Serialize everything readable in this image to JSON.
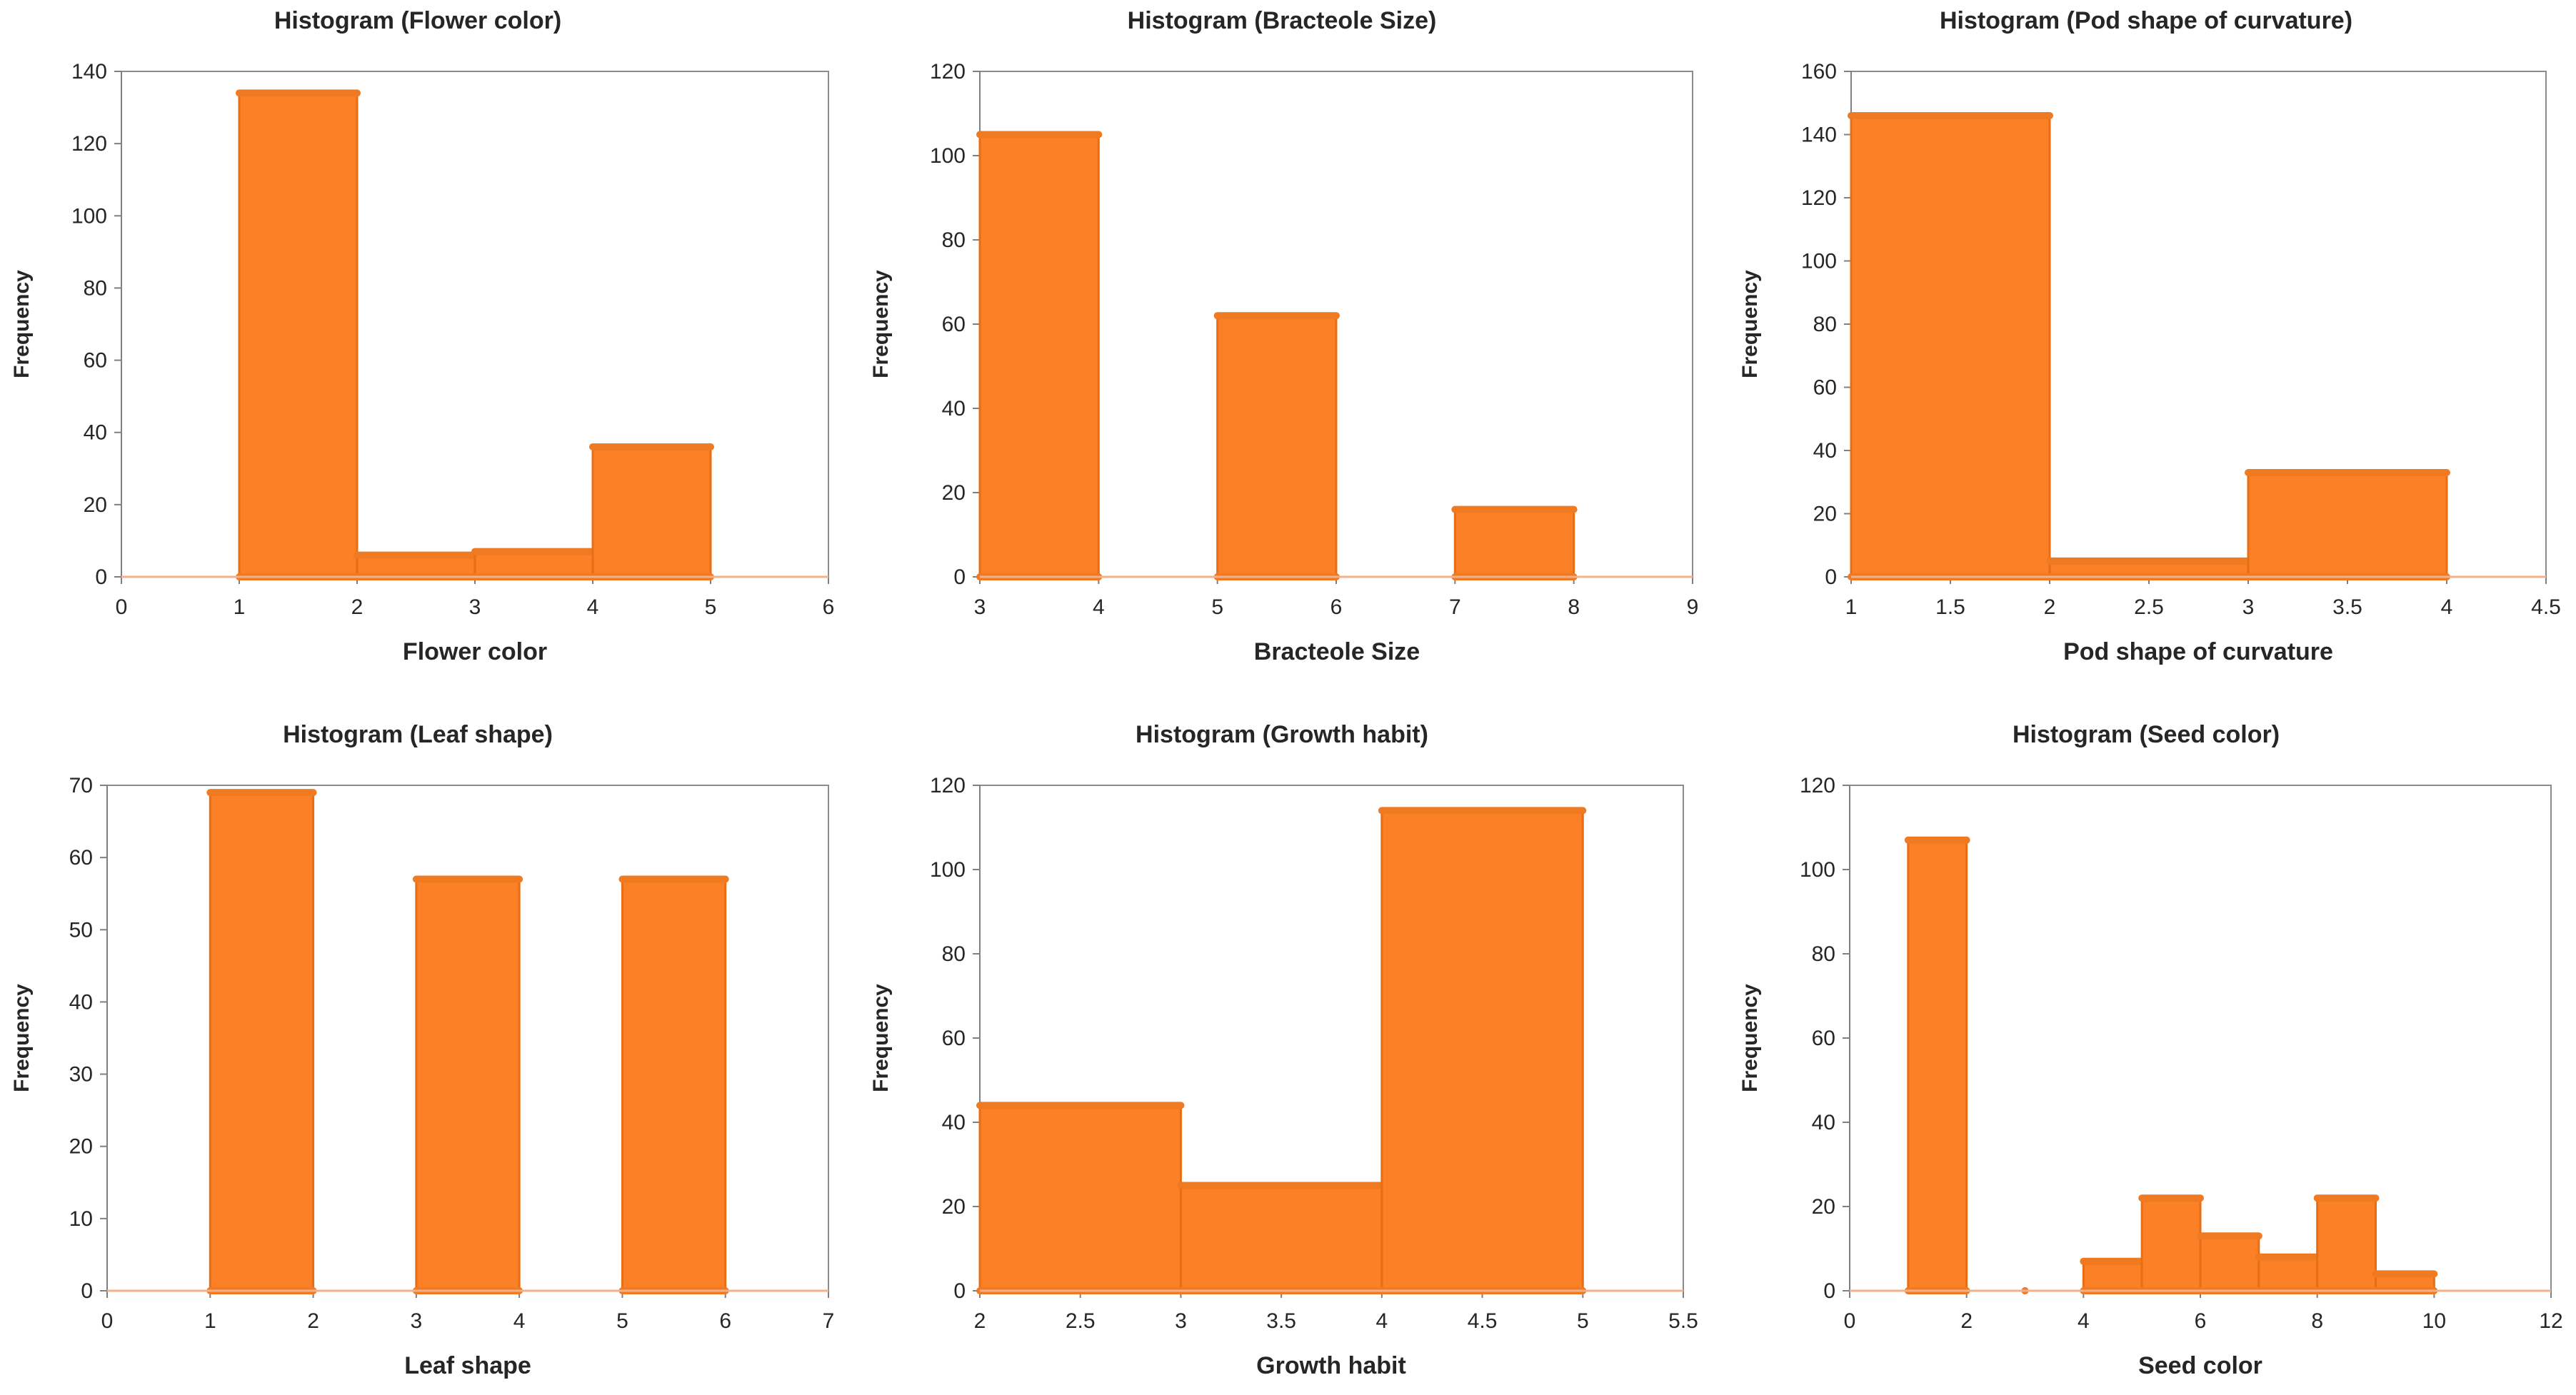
{
  "colors": {
    "bar": "#fb8026",
    "bar_edge": "#e86d13",
    "axis": "#f3b08a",
    "frame": "#8c8c8c",
    "text": "#262626"
  },
  "chart_data": [
    {
      "type": "bar",
      "title": "Histogram (Flower color)",
      "xlabel": "Flower color",
      "ylabel": "Frequency",
      "xlim": [
        0,
        6
      ],
      "xticks": [
        0,
        1,
        2,
        3,
        4,
        5,
        6
      ],
      "ylim": [
        0,
        140
      ],
      "yticks": [
        0,
        20,
        40,
        60,
        80,
        100,
        120,
        140
      ],
      "bins": [
        {
          "x0": 1,
          "x1": 2,
          "value": 134
        },
        {
          "x0": 2,
          "x1": 3,
          "value": 6
        },
        {
          "x0": 3,
          "x1": 4,
          "value": 7
        },
        {
          "x0": 4,
          "x1": 5,
          "value": 36
        }
      ]
    },
    {
      "type": "bar",
      "title": "Histogram (Bracteole Size)",
      "xlabel": "Bracteole Size",
      "ylabel": "Frequency",
      "xlim": [
        3,
        9
      ],
      "xticks": [
        3,
        4,
        5,
        6,
        7,
        8,
        9
      ],
      "ylim": [
        0,
        120
      ],
      "yticks": [
        0,
        20,
        40,
        60,
        80,
        100,
        120
      ],
      "bins": [
        {
          "x0": 3,
          "x1": 4,
          "value": 105
        },
        {
          "x0": 5,
          "x1": 6,
          "value": 62
        },
        {
          "x0": 7,
          "x1": 8,
          "value": 16
        }
      ]
    },
    {
      "type": "bar",
      "title": "Histogram (Pod shape of curvature)",
      "xlabel": "Pod shape of curvature",
      "ylabel": "Frequency",
      "xlim": [
        1,
        4.5
      ],
      "xticks": [
        1,
        1.5,
        2,
        2.5,
        3,
        3.5,
        4,
        4.5
      ],
      "ylim": [
        0,
        160
      ],
      "yticks": [
        0,
        20,
        40,
        60,
        80,
        100,
        120,
        140,
        160
      ],
      "bins": [
        {
          "x0": 1,
          "x1": 2,
          "value": 146
        },
        {
          "x0": 2,
          "x1": 3,
          "value": 5
        },
        {
          "x0": 3,
          "x1": 4,
          "value": 33
        }
      ]
    },
    {
      "type": "bar",
      "title": "Histogram (Leaf shape)",
      "xlabel": "Leaf shape",
      "ylabel": "Frequency",
      "xlim": [
        0,
        7
      ],
      "xticks": [
        0,
        1,
        2,
        3,
        4,
        5,
        6,
        7
      ],
      "ylim": [
        0,
        70
      ],
      "yticks": [
        0,
        10,
        20,
        30,
        40,
        50,
        60,
        70
      ],
      "bins": [
        {
          "x0": 1,
          "x1": 2,
          "value": 69
        },
        {
          "x0": 3,
          "x1": 4,
          "value": 57
        },
        {
          "x0": 5,
          "x1": 6,
          "value": 57
        }
      ]
    },
    {
      "type": "bar",
      "title": "Histogram (Growth habit)",
      "xlabel": "Growth habit",
      "ylabel": "Frequency",
      "xlim": [
        2,
        5.5
      ],
      "xticks": [
        2,
        2.5,
        3,
        3.5,
        4,
        4.5,
        5,
        5.5
      ],
      "ylim": [
        0,
        120
      ],
      "yticks": [
        0,
        20,
        40,
        60,
        80,
        100,
        120
      ],
      "bins": [
        {
          "x0": 2,
          "x1": 3,
          "value": 44
        },
        {
          "x0": 3,
          "x1": 4,
          "value": 25
        },
        {
          "x0": 4,
          "x1": 5,
          "value": 114
        }
      ]
    },
    {
      "type": "bar",
      "title": "Histogram (Seed color)",
      "xlabel": "Seed color",
      "ylabel": "Frequency",
      "xlim": [
        0,
        12
      ],
      "xticks": [
        0,
        2,
        4,
        6,
        8,
        10,
        12
      ],
      "ylim": [
        0,
        120
      ],
      "yticks": [
        0,
        20,
        40,
        60,
        80,
        100,
        120
      ],
      "bins": [
        {
          "x0": 1,
          "x1": 2,
          "value": 107
        },
        {
          "x0": 3,
          "x1": 3,
          "value": 0
        },
        {
          "x0": 4,
          "x1": 5,
          "value": 7
        },
        {
          "x0": 5,
          "x1": 6,
          "value": 22
        },
        {
          "x0": 6,
          "x1": 7,
          "value": 13
        },
        {
          "x0": 7,
          "x1": 8,
          "value": 8
        },
        {
          "x0": 8,
          "x1": 9,
          "value": 22
        },
        {
          "x0": 9,
          "x1": 10,
          "value": 4
        }
      ]
    }
  ]
}
